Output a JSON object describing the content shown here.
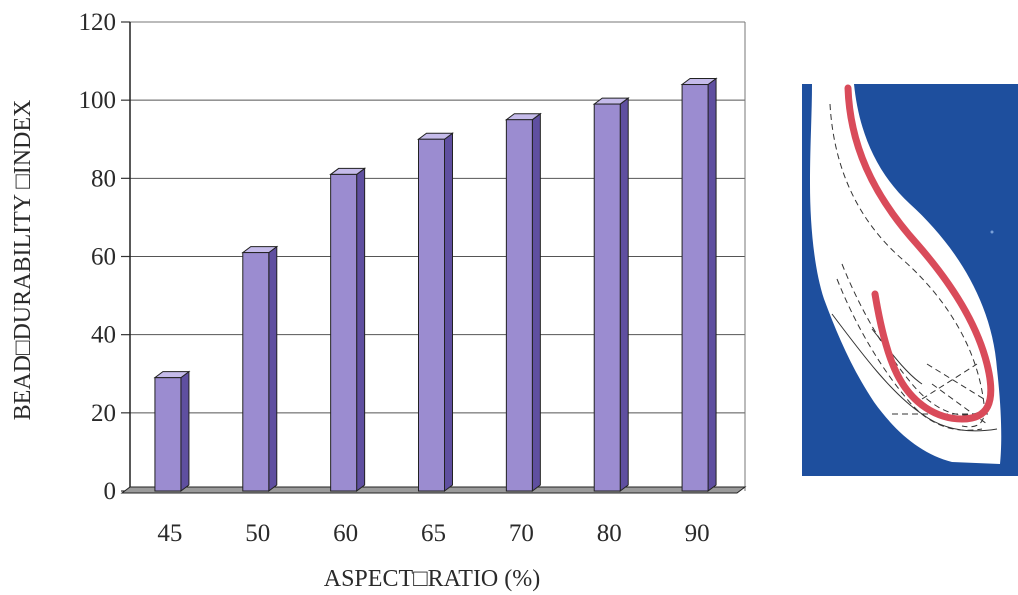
{
  "chart_data": {
    "type": "bar",
    "style": "3d-column",
    "categories": [
      "45",
      "50",
      "60",
      "65",
      "70",
      "80",
      "90"
    ],
    "values": [
      29,
      61,
      81,
      90,
      95,
      99,
      104
    ],
    "ylim": [
      0,
      120
    ],
    "yticks": [
      0,
      20,
      40,
      60,
      80,
      100,
      120
    ],
    "xlabel": "ASPECT□RATIO (%)",
    "ylabel": "BEAD□DURABILITY □INDEX",
    "title": "",
    "grid": true,
    "bar_color": "#9b8cd0",
    "bar_side_color": "#5f4fa0",
    "bar_top_color": "#c5bbea"
  },
  "figure": {
    "background_color": "#1e4f9e",
    "bead_profile_color": "#d94b5a",
    "description_icon": "tire-bead-cross-section"
  }
}
